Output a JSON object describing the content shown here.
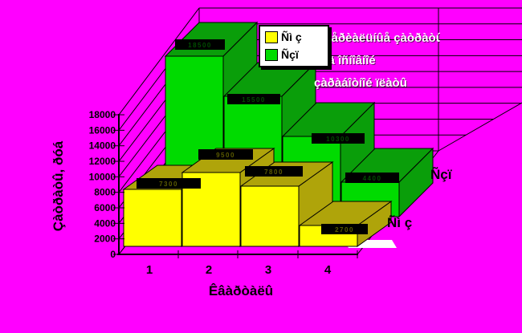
{
  "background_color": "#FF00FF",
  "chart_data": {
    "type": "bar",
    "projection": "3d-perspective",
    "title": "",
    "categories": [
      "1",
      "2",
      "3",
      "4"
    ],
    "series": [
      {
        "name": "Ñì ç",
        "color": "#FFFF00",
        "dark_color": "#AFA40A",
        "values": [
          7300,
          9500,
          7800,
          2700
        ]
      },
      {
        "name": "Ñçï",
        "color": "#00DB00",
        "dark_color": "#0A9E0A",
        "values": [
          18500,
          15500,
          10300,
          4400
        ]
      }
    ],
    "data_labels_note": "each bar carries a black data-label strip with dithered, near-illegible digits; numeric values estimated from the 2000-unit gridlines",
    "value_axis": {
      "title": "Çàòðàòû, ðóá",
      "min": 0,
      "max": 18000,
      "step": 2000,
      "tick_labels": [
        "0",
        "2000",
        "4000",
        "6000",
        "8000",
        "10000",
        "12000",
        "14000",
        "16000",
        "18000"
      ]
    },
    "category_axis": {
      "title": "Êâàðòàëû",
      "labels": [
        "1",
        "2",
        "3",
        "4"
      ]
    },
    "series_axis_labels": [
      "Ñì ç",
      "Ñçï"
    ],
    "legend": {
      "position": "top",
      "items": [
        {
          "label": "Ñì ç",
          "color": "#FFFF00"
        },
        {
          "label": "Ñçï",
          "color": "#00DB00"
        }
      ]
    },
    "annotation": {
      "lines": [
        "ìàòåðèàëüíûå çàòðàòû",
        "ôîíä îñíîâíîé",
        "çàðàáîòíîé ïëàòû"
      ],
      "color": "#FFFFFF"
    },
    "grid": true,
    "wall_color": "#FF00FF",
    "floor_sliver_color": "#FFFFFF",
    "axis_color": "#000000"
  }
}
